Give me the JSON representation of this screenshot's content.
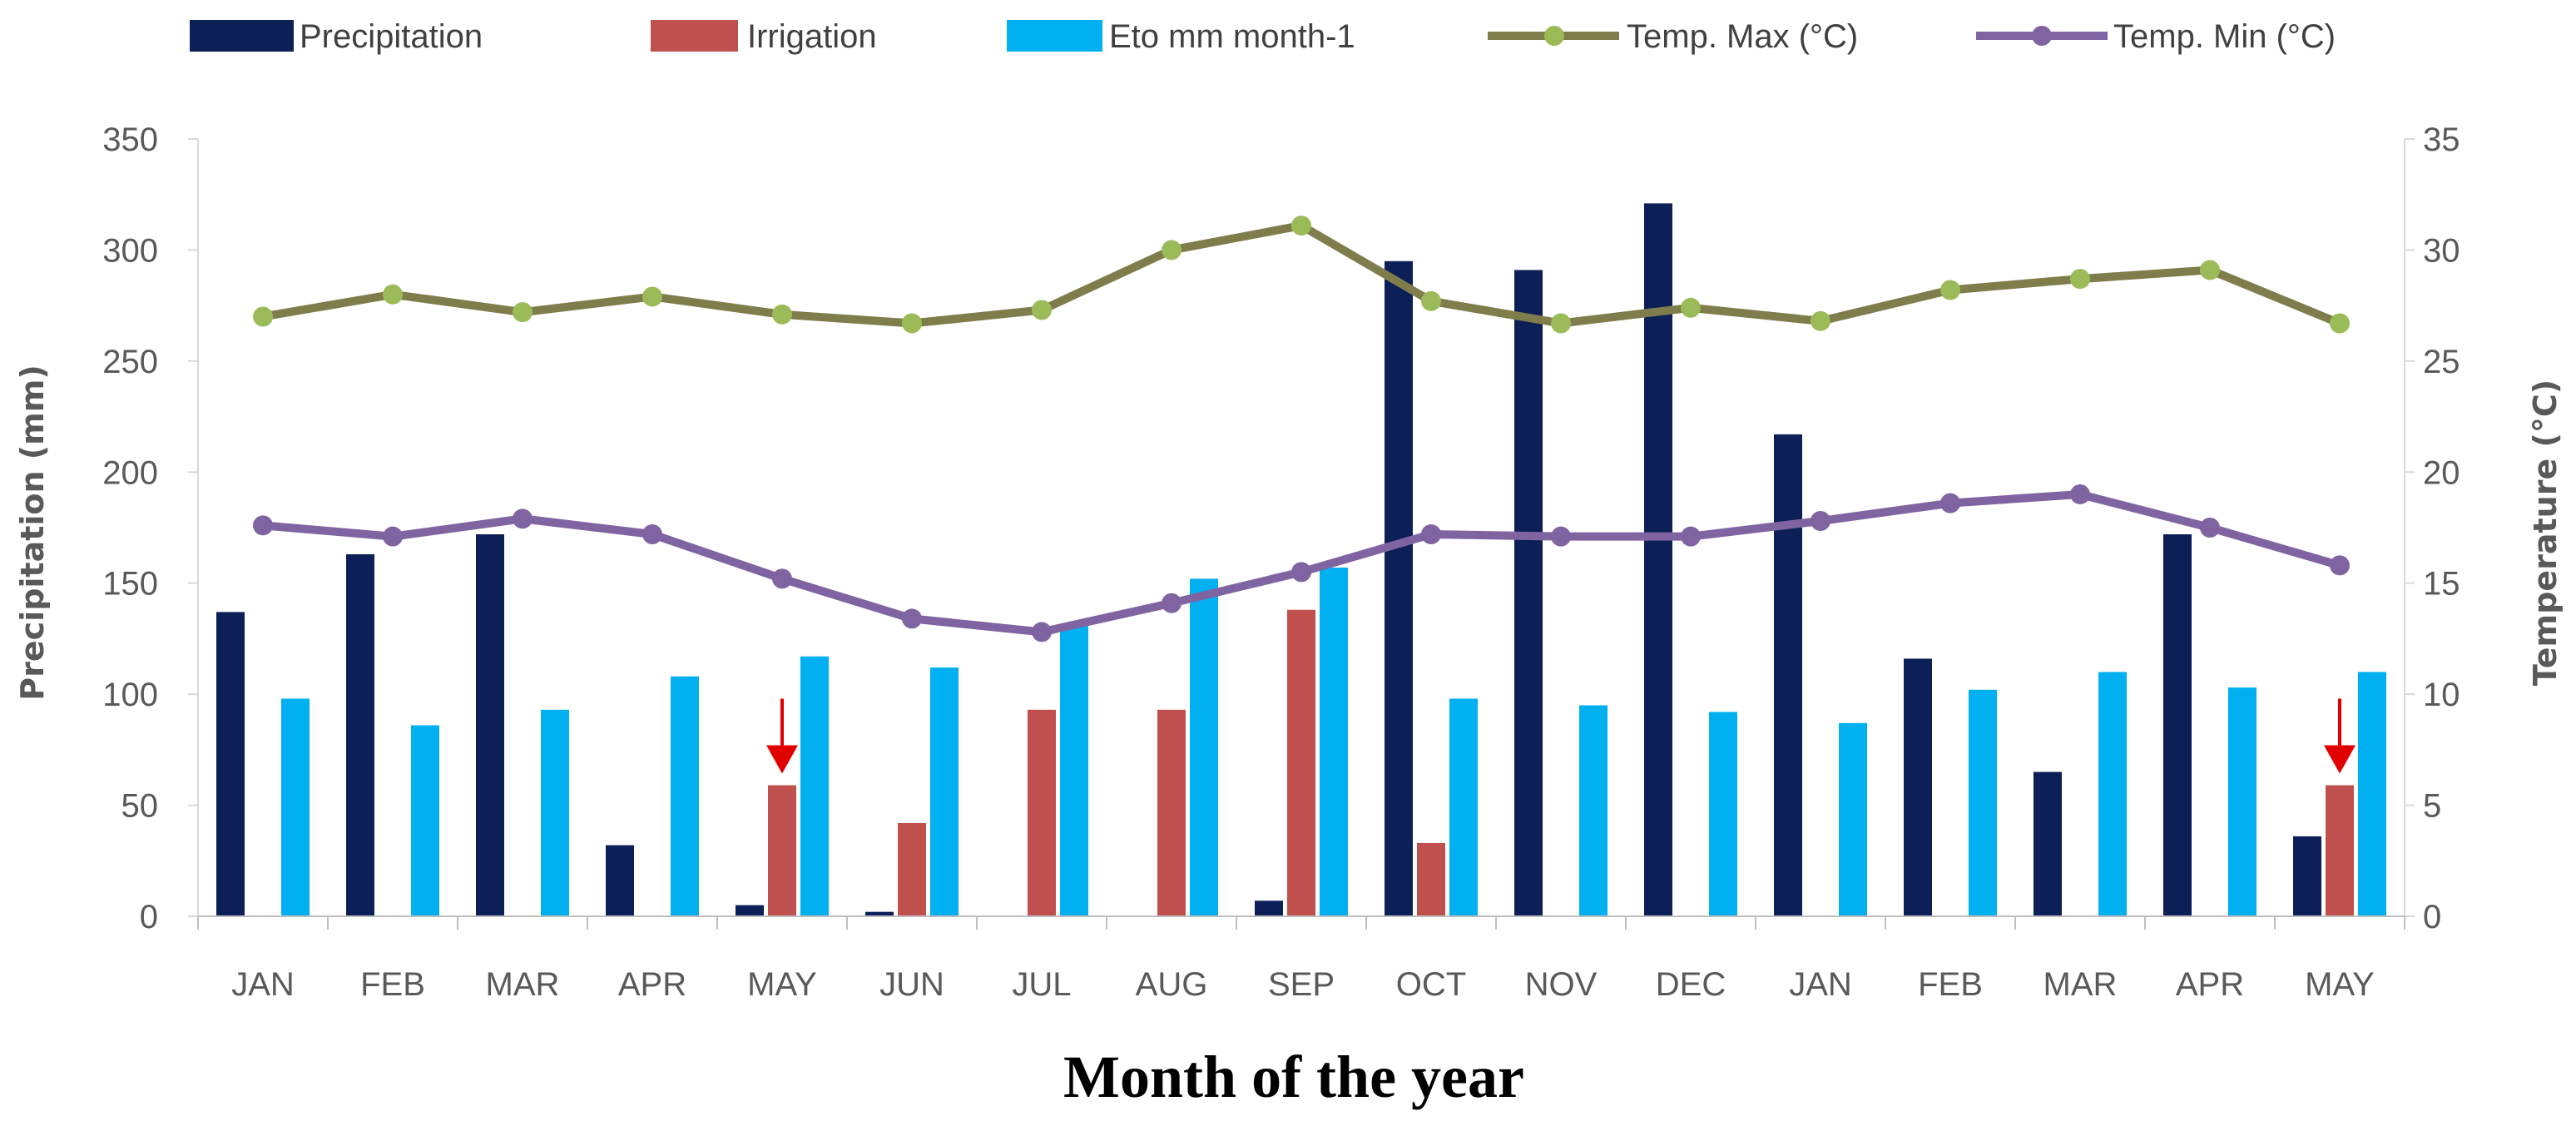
{
  "chart_data": {
    "type": "bar",
    "title": "",
    "xlabel": "Month of the year",
    "ylabel": "Precipitation (mm)",
    "y2label": "Temperature (°C)",
    "ylim": [
      0,
      350
    ],
    "y2lim": [
      0,
      35
    ],
    "yticks": [
      "0",
      "50",
      "100",
      "150",
      "200",
      "250",
      "300",
      "350"
    ],
    "y2ticks": [
      "0",
      "5",
      "10",
      "15",
      "20",
      "25",
      "30",
      "35"
    ],
    "categories": [
      "JAN",
      "FEB",
      "MAR",
      "APR",
      "MAY",
      "JUN",
      "JUL",
      "AUG",
      "SEP",
      "OCT",
      "NOV",
      "DEC",
      "JAN",
      "FEB",
      "MAR",
      "APR",
      "MAY"
    ],
    "series": [
      {
        "name": "Precipitation",
        "kind": "bar",
        "axis": "left",
        "color": "#0c1f57",
        "values": [
          137,
          163,
          172,
          32,
          5,
          2,
          0,
          0,
          7,
          295,
          291,
          321,
          217,
          116,
          65,
          172,
          36
        ]
      },
      {
        "name": "Irrigation",
        "kind": "bar",
        "axis": "left",
        "color": "#c0504d",
        "values": [
          0,
          0,
          0,
          0,
          59,
          42,
          93,
          93,
          138,
          33,
          0,
          0,
          0,
          0,
          0,
          0,
          59
        ]
      },
      {
        "name": "Eto mm month-1",
        "kind": "bar",
        "axis": "left",
        "color": "#00b0f0",
        "values": [
          98,
          86,
          93,
          108,
          117,
          112,
          131,
          152,
          157,
          98,
          95,
          92,
          87,
          102,
          110,
          103,
          110
        ]
      },
      {
        "name": "Temp. Max (°C)",
        "kind": "line",
        "axis": "right",
        "color": "#7f7d4b",
        "marker_color": "#9bbb59",
        "values": [
          27.0,
          28.0,
          27.2,
          27.9,
          27.1,
          26.7,
          27.3,
          30.0,
          31.1,
          27.7,
          26.7,
          27.4,
          26.8,
          28.2,
          28.7,
          29.1,
          26.7
        ]
      },
      {
        "name": "Temp. Min  (°C)",
        "kind": "line",
        "axis": "right",
        "color": "#8064a2",
        "marker_color": "#8064a2",
        "values": [
          17.6,
          17.1,
          17.9,
          17.2,
          15.2,
          13.4,
          12.8,
          14.1,
          15.5,
          17.2,
          17.1,
          17.1,
          17.8,
          18.6,
          19.0,
          17.5,
          15.8
        ]
      }
    ],
    "annotations": [
      {
        "type": "arrow",
        "category_index": 4,
        "points_to": "Irrigation",
        "color": "#e00000"
      },
      {
        "type": "arrow",
        "category_index": 16,
        "points_to": "Irrigation",
        "color": "#e00000"
      }
    ],
    "legend_position": "top"
  }
}
